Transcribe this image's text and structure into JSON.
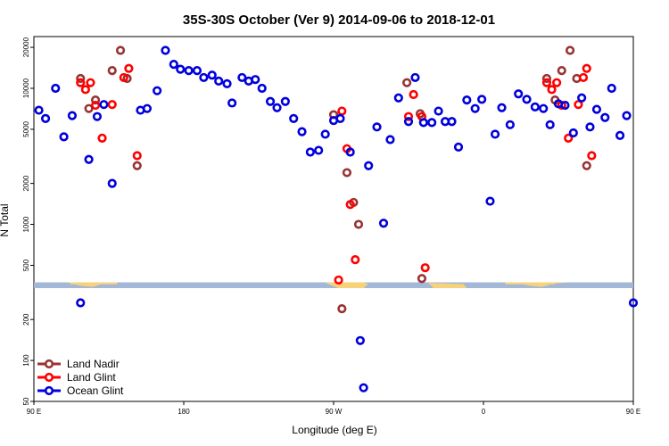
{
  "chart_data": {
    "type": "scatter",
    "title": "35S-30S October (Ver 9)   2014-09-06 to 2018-12-01",
    "xlabel": "Longitude (deg E)",
    "ylabel": "N Total",
    "x_scale": "linear",
    "y_scale": "log",
    "xlim": [
      90,
      450
    ],
    "ylim": [
      50,
      24000
    ],
    "x_ticks": [
      {
        "value": 90,
        "label": "90 E"
      },
      {
        "value": 180,
        "label": "180"
      },
      {
        "value": 270,
        "label": "90 W"
      },
      {
        "value": 360,
        "label": "0"
      },
      {
        "value": 450,
        "label": "90 E"
      },
      {
        "value": 540,
        "label": "180"
      }
    ],
    "y_ticks": [
      {
        "value": 50,
        "label": "50"
      },
      {
        "value": 100,
        "label": "100"
      },
      {
        "value": 200,
        "label": "200"
      },
      {
        "value": 500,
        "label": "500"
      },
      {
        "value": 1000,
        "label": "1000"
      },
      {
        "value": 2000,
        "label": "2000"
      },
      {
        "value": 5000,
        "label": "5000"
      },
      {
        "value": 10000,
        "label": "10000"
      },
      {
        "value": 20000,
        "label": "20000"
      }
    ],
    "legend_position": "bottom-left",
    "series": [
      {
        "name": "Land Nadir",
        "color": "#993333",
        "points": [
          [
            118,
            11800
          ],
          [
            123,
            7100
          ],
          [
            127,
            8200
          ],
          [
            137,
            13500
          ],
          [
            142,
            19000
          ],
          [
            146,
            11800
          ],
          [
            152,
            2700
          ],
          [
            270,
            6400
          ],
          [
            278,
            2400
          ],
          [
            282,
            1450
          ],
          [
            285,
            1000
          ],
          [
            275,
            240
          ],
          [
            314,
            11000
          ],
          [
            322,
            6500
          ],
          [
            323,
            400
          ],
          [
            398,
            11800
          ],
          [
            403,
            8200
          ],
          [
            407,
            13500
          ],
          [
            412,
            19000
          ],
          [
            416,
            11800
          ],
          [
            422,
            2700
          ]
        ]
      },
      {
        "name": "Land Glint",
        "color": "#ff0000",
        "points": [
          [
            118,
            11000
          ],
          [
            121,
            9800
          ],
          [
            124,
            11000
          ],
          [
            127,
            7500
          ],
          [
            131,
            4300
          ],
          [
            137,
            7600
          ],
          [
            144,
            12000
          ],
          [
            147,
            14000
          ],
          [
            152,
            3200
          ],
          [
            273,
            390
          ],
          [
            275,
            6800
          ],
          [
            278,
            3600
          ],
          [
            280,
            1400
          ],
          [
            283,
            550
          ],
          [
            315,
            6200
          ],
          [
            318,
            9000
          ],
          [
            323,
            6200
          ],
          [
            325,
            480
          ],
          [
            398,
            11000
          ],
          [
            401,
            9800
          ],
          [
            404,
            11000
          ],
          [
            407,
            7500
          ],
          [
            411,
            4300
          ],
          [
            417,
            7600
          ],
          [
            420,
            12000
          ],
          [
            422,
            14000
          ],
          [
            425,
            3200
          ]
        ]
      },
      {
        "name": "Ocean Glint",
        "color": "#0000dd",
        "points": [
          [
            93,
            6900
          ],
          [
            97,
            6000
          ],
          [
            103,
            10000
          ],
          [
            108,
            4400
          ],
          [
            113,
            6300
          ],
          [
            118,
            265
          ],
          [
            123,
            3000
          ],
          [
            128,
            6200
          ],
          [
            132,
            7600
          ],
          [
            137,
            2000
          ],
          [
            154,
            6900
          ],
          [
            158,
            7100
          ],
          [
            164,
            9600
          ],
          [
            169,
            19000
          ],
          [
            174,
            15000
          ],
          [
            178,
            13800
          ],
          [
            183,
            13500
          ],
          [
            188,
            13500
          ],
          [
            192,
            12000
          ],
          [
            197,
            12500
          ],
          [
            201,
            11300
          ],
          [
            206,
            10800
          ],
          [
            209,
            7800
          ],
          [
            215,
            12000
          ],
          [
            219,
            11300
          ],
          [
            223,
            11600
          ],
          [
            227,
            10000
          ],
          [
            232,
            8000
          ],
          [
            236,
            7200
          ],
          [
            241,
            8000
          ],
          [
            246,
            6000
          ],
          [
            251,
            4800
          ],
          [
            256,
            3400
          ],
          [
            261,
            3500
          ],
          [
            265,
            4600
          ],
          [
            270,
            5800
          ],
          [
            274,
            6000
          ],
          [
            280,
            3400
          ],
          [
            286,
            140
          ],
          [
            288,
            63
          ],
          [
            291,
            2700
          ],
          [
            296,
            5200
          ],
          [
            300,
            1020
          ],
          [
            304,
            4200
          ],
          [
            309,
            8500
          ],
          [
            315,
            5700
          ],
          [
            319,
            12000
          ],
          [
            324,
            5600
          ],
          [
            329,
            5600
          ],
          [
            333,
            6800
          ],
          [
            337,
            5700
          ],
          [
            341,
            5700
          ],
          [
            345,
            3700
          ],
          [
            350,
            8200
          ],
          [
            355,
            7100
          ],
          [
            359,
            8300
          ],
          [
            364,
            1480
          ],
          [
            367,
            4600
          ],
          [
            371,
            7200
          ],
          [
            376,
            5400
          ],
          [
            381,
            9100
          ],
          [
            386,
            8300
          ],
          [
            391,
            7300
          ],
          [
            396,
            7100
          ],
          [
            400,
            5400
          ],
          [
            405,
            7700
          ],
          [
            409,
            7500
          ],
          [
            414,
            4700
          ],
          [
            419,
            8500
          ],
          [
            424,
            5200
          ],
          [
            428,
            7000
          ],
          [
            433,
            6100
          ],
          [
            437,
            10000
          ],
          [
            442,
            4500
          ],
          [
            446,
            6300
          ],
          [
            450,
            265
          ]
        ]
      }
    ],
    "map_strip": {
      "y_range": [
        340,
        375
      ],
      "ocean_color": "#a3b7d6",
      "land_color": "#f7d27a"
    }
  }
}
